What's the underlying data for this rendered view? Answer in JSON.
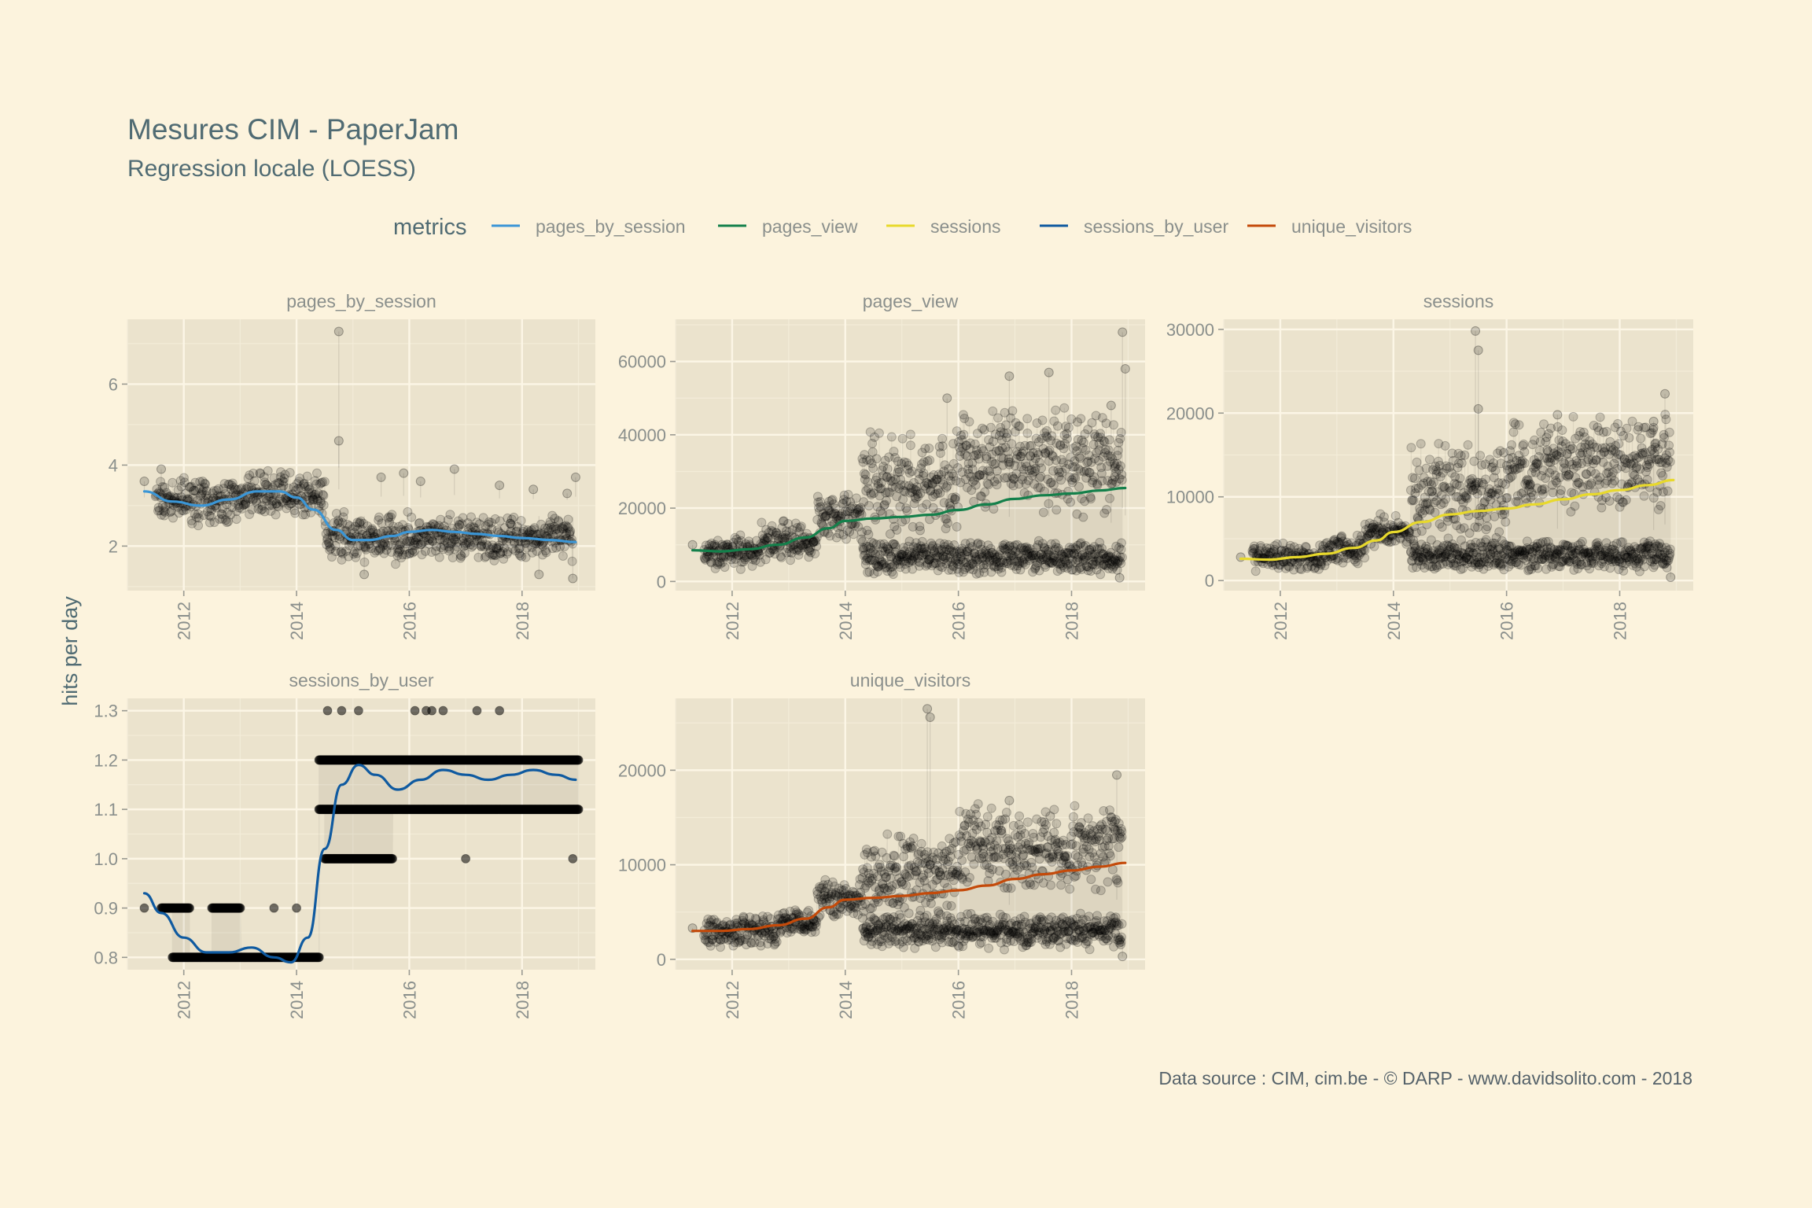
{
  "title": "Mesures CIM - PaperJam",
  "subtitle": "Regression locale (LOESS)",
  "y_axis_label": "hits per day",
  "caption": "Data source : CIM, cim.be - © DARP - www.davidsolito.com - 2018",
  "legend": {
    "title": "metrics",
    "items": [
      {
        "label": "pages_by_session",
        "color": "#3b96d6"
      },
      {
        "label": "pages_view",
        "color": "#14804b"
      },
      {
        "label": "sessions",
        "color": "#e8d92c"
      },
      {
        "label": "sessions_by_user",
        "color": "#0f5aa0"
      },
      {
        "label": "unique_visitors",
        "color": "#c44a0a"
      }
    ]
  },
  "chart_data": [
    {
      "type": "scatter",
      "title": "pages_by_session",
      "color": "#3b96d6",
      "xlim": [
        2011.0,
        2019.3
      ],
      "ylim": [
        0.9,
        7.6
      ],
      "x_ticks": [
        2012,
        2014,
        2016,
        2018
      ],
      "x_tick_labels": [
        "2012",
        "2014",
        "2016",
        "2018"
      ],
      "y_ticks": [
        2,
        4,
        6
      ],
      "y_tick_labels": [
        "2",
        "4",
        "6"
      ],
      "points_note": "daily observations (dense point cloud)",
      "point_bands": [
        {
          "x_start": 2011.5,
          "x_end": 2013.0,
          "y_mid": 3.1,
          "y_spread": 0.6
        },
        {
          "x_start": 2013.0,
          "x_end": 2014.5,
          "y_mid": 3.3,
          "y_spread": 0.6
        },
        {
          "x_start": 2014.5,
          "x_end": 2016.0,
          "y_mid": 2.2,
          "y_spread": 0.7
        },
        {
          "x_start": 2016.0,
          "x_end": 2018.9,
          "y_mid": 2.2,
          "y_spread": 0.6
        }
      ],
      "outliers": [
        {
          "x": 2011.3,
          "y": 3.6
        },
        {
          "x": 2011.6,
          "y": 3.9
        },
        {
          "x": 2014.75,
          "y": 7.3
        },
        {
          "x": 2014.75,
          "y": 4.6
        },
        {
          "x": 2015.5,
          "y": 3.7
        },
        {
          "x": 2015.9,
          "y": 3.8
        },
        {
          "x": 2016.2,
          "y": 3.6
        },
        {
          "x": 2016.8,
          "y": 3.9
        },
        {
          "x": 2017.6,
          "y": 3.5
        },
        {
          "x": 2018.2,
          "y": 3.4
        },
        {
          "x": 2018.8,
          "y": 3.3
        },
        {
          "x": 2018.95,
          "y": 3.7
        },
        {
          "x": 2018.3,
          "y": 1.3
        },
        {
          "x": 2018.9,
          "y": 1.2
        },
        {
          "x": 2015.2,
          "y": 1.3
        }
      ],
      "smooth": {
        "x": [
          2011.3,
          2011.8,
          2012.3,
          2012.8,
          2013.3,
          2013.7,
          2014.0,
          2014.3,
          2014.7,
          2015.0,
          2015.3,
          2015.7,
          2016.0,
          2016.4,
          2016.8,
          2017.2,
          2017.6,
          2018.0,
          2018.5,
          2018.95
        ],
        "y": [
          3.35,
          3.1,
          3.0,
          3.15,
          3.35,
          3.35,
          3.2,
          2.9,
          2.4,
          2.15,
          2.15,
          2.25,
          2.35,
          2.4,
          2.35,
          2.3,
          2.25,
          2.2,
          2.15,
          2.1
        ]
      }
    },
    {
      "type": "scatter",
      "title": "pages_view",
      "color": "#14804b",
      "xlim": [
        2011.0,
        2019.3
      ],
      "ylim": [
        -2500,
        71500
      ],
      "x_ticks": [
        2012,
        2014,
        2016,
        2018
      ],
      "x_tick_labels": [
        "2012",
        "2014",
        "2016",
        "2018"
      ],
      "y_ticks": [
        0,
        20000,
        40000,
        60000
      ],
      "y_tick_labels": [
        "0",
        "20000",
        "40000",
        "60000"
      ],
      "points_note": "daily observations (weekday cluster high, weekend cluster low)",
      "point_bands": [
        {
          "x_start": 2011.5,
          "x_end": 2012.5,
          "y_mid": 8000,
          "y_spread": 5000
        },
        {
          "x_start": 2012.5,
          "x_end": 2013.5,
          "y_mid": 11000,
          "y_spread": 6000
        },
        {
          "x_start": 2013.5,
          "x_end": 2014.3,
          "y_mid": 18000,
          "y_spread": 7000
        },
        {
          "x_start": 2014.3,
          "x_end": 2016.0,
          "y_mid": 26000,
          "y_spread": 16000
        },
        {
          "x_start": 2016.0,
          "x_end": 2018.9,
          "y_mid": 33000,
          "y_spread": 16000
        },
        {
          "x_start": 2014.3,
          "x_end": 2018.9,
          "y_mid": 6500,
          "y_spread": 5000
        }
      ],
      "outliers": [
        {
          "x": 2011.3,
          "y": 10000
        },
        {
          "x": 2015.8,
          "y": 50000
        },
        {
          "x": 2016.9,
          "y": 56000
        },
        {
          "x": 2017.6,
          "y": 57000
        },
        {
          "x": 2018.7,
          "y": 48000
        },
        {
          "x": 2018.9,
          "y": 68000
        },
        {
          "x": 2018.95,
          "y": 58000
        },
        {
          "x": 2018.85,
          "y": 1000
        }
      ],
      "smooth": {
        "x": [
          2011.3,
          2011.8,
          2012.3,
          2012.8,
          2013.3,
          2013.7,
          2014.0,
          2014.5,
          2015.0,
          2015.5,
          2016.0,
          2016.5,
          2017.0,
          2017.5,
          2018.0,
          2018.5,
          2018.95
        ],
        "y": [
          8500,
          8200,
          8800,
          10000,
          12000,
          14500,
          16500,
          17200,
          17600,
          18200,
          19500,
          21000,
          22500,
          23500,
          24000,
          24800,
          25500
        ]
      }
    },
    {
      "type": "scatter",
      "title": "sessions",
      "color": "#e8d92c",
      "xlim": [
        2011.0,
        2019.3
      ],
      "ylim": [
        -1200,
        31200
      ],
      "x_ticks": [
        2012,
        2014,
        2016,
        2018
      ],
      "x_tick_labels": [
        "2012",
        "2014",
        "2016",
        "2018"
      ],
      "y_ticks": [
        0,
        10000,
        20000,
        30000
      ],
      "y_tick_labels": [
        "0",
        "10000",
        "20000",
        "30000"
      ],
      "points_note": "daily observations (weekday cluster high, weekend cluster low)",
      "point_bands": [
        {
          "x_start": 2011.5,
          "x_end": 2012.8,
          "y_mid": 2800,
          "y_spread": 1800
        },
        {
          "x_start": 2012.8,
          "x_end": 2013.5,
          "y_mid": 3800,
          "y_spread": 2000
        },
        {
          "x_start": 2013.5,
          "x_end": 2014.3,
          "y_mid": 5800,
          "y_spread": 2200
        },
        {
          "x_start": 2014.3,
          "x_end": 2016.0,
          "y_mid": 10500,
          "y_spread": 6500
        },
        {
          "x_start": 2016.0,
          "x_end": 2018.9,
          "y_mid": 14000,
          "y_spread": 6500
        },
        {
          "x_start": 2014.3,
          "x_end": 2018.9,
          "y_mid": 3000,
          "y_spread": 2000
        }
      ],
      "outliers": [
        {
          "x": 2011.3,
          "y": 2800
        },
        {
          "x": 2015.45,
          "y": 29800
        },
        {
          "x": 2015.5,
          "y": 27500
        },
        {
          "x": 2015.5,
          "y": 20500
        },
        {
          "x": 2016.9,
          "y": 19800
        },
        {
          "x": 2018.6,
          "y": 19000
        },
        {
          "x": 2018.8,
          "y": 22300
        },
        {
          "x": 2018.9,
          "y": 400
        }
      ],
      "smooth": {
        "x": [
          2011.3,
          2011.8,
          2012.3,
          2012.8,
          2013.3,
          2013.7,
          2014.0,
          2014.5,
          2015.0,
          2015.5,
          2016.0,
          2016.5,
          2017.0,
          2017.5,
          2018.0,
          2018.5,
          2018.95
        ],
        "y": [
          2600,
          2500,
          2800,
          3200,
          3900,
          4800,
          5800,
          7000,
          7900,
          8300,
          8600,
          9100,
          9700,
          10300,
          10800,
          11400,
          12000
        ]
      }
    },
    {
      "type": "scatter",
      "title": "sessions_by_user",
      "color": "#0f5aa0",
      "xlim": [
        2011.0,
        2019.3
      ],
      "ylim": [
        0.775,
        1.325
      ],
      "x_ticks": [
        2012,
        2014,
        2016,
        2018
      ],
      "x_tick_labels": [
        "2012",
        "2014",
        "2016",
        "2018"
      ],
      "y_ticks": [
        0.8,
        0.9,
        1.0,
        1.1,
        1.2,
        1.3
      ],
      "y_tick_labels": [
        "0.8",
        "0.9",
        "1.0",
        "1.1",
        "1.2",
        "1.3"
      ],
      "points_note": "values rounded to one decimal; rows of points at discrete levels",
      "point_rows": [
        {
          "y": 0.9,
          "x_start": 2011.6,
          "x_end": 2012.1
        },
        {
          "y": 0.8,
          "x_start": 2011.8,
          "x_end": 2014.4
        },
        {
          "y": 0.9,
          "x_start": 2012.5,
          "x_end": 2013.0
        },
        {
          "y": 1.2,
          "x_start": 2014.4,
          "x_end": 2019.0
        },
        {
          "y": 1.1,
          "x_start": 2014.4,
          "x_end": 2019.0
        },
        {
          "y": 1.0,
          "x_start": 2014.5,
          "x_end": 2015.7
        }
      ],
      "outliers": [
        {
          "x": 2011.3,
          "y": 0.9
        },
        {
          "x": 2013.6,
          "y": 0.9
        },
        {
          "x": 2014.0,
          "y": 0.9
        },
        {
          "x": 2014.55,
          "y": 1.3
        },
        {
          "x": 2014.8,
          "y": 1.3
        },
        {
          "x": 2015.1,
          "y": 1.3
        },
        {
          "x": 2016.1,
          "y": 1.3
        },
        {
          "x": 2016.3,
          "y": 1.3
        },
        {
          "x": 2016.4,
          "y": 1.3
        },
        {
          "x": 2016.6,
          "y": 1.3
        },
        {
          "x": 2017.2,
          "y": 1.3
        },
        {
          "x": 2017.6,
          "y": 1.3
        },
        {
          "x": 2017.0,
          "y": 1.0
        },
        {
          "x": 2018.9,
          "y": 1.0
        }
      ],
      "smooth": {
        "x": [
          2011.3,
          2011.6,
          2012.0,
          2012.4,
          2012.8,
          2013.2,
          2013.6,
          2013.9,
          2014.2,
          2014.5,
          2014.8,
          2015.1,
          2015.4,
          2015.8,
          2016.2,
          2016.6,
          2017.0,
          2017.4,
          2017.8,
          2018.2,
          2018.6,
          2018.95
        ],
        "y": [
          0.93,
          0.89,
          0.84,
          0.81,
          0.81,
          0.82,
          0.8,
          0.79,
          0.84,
          1.02,
          1.15,
          1.19,
          1.17,
          1.14,
          1.16,
          1.18,
          1.17,
          1.16,
          1.17,
          1.18,
          1.17,
          1.16
        ]
      }
    },
    {
      "type": "scatter",
      "title": "unique_visitors",
      "color": "#c44a0a",
      "xlim": [
        2011.0,
        2019.3
      ],
      "ylim": [
        -1100,
        27600
      ],
      "x_ticks": [
        2012,
        2014,
        2016,
        2018
      ],
      "x_tick_labels": [
        "2012",
        "2014",
        "2016",
        "2018"
      ],
      "y_ticks": [
        0,
        10000,
        20000
      ],
      "y_tick_labels": [
        "0",
        "10000",
        "20000"
      ],
      "points_note": "daily observations (weekday cluster high, weekend cluster low)",
      "point_bands": [
        {
          "x_start": 2011.5,
          "x_end": 2012.8,
          "y_mid": 3000,
          "y_spread": 2000
        },
        {
          "x_start": 2012.8,
          "x_end": 2013.5,
          "y_mid": 4000,
          "y_spread": 2000
        },
        {
          "x_start": 2013.5,
          "x_end": 2014.3,
          "y_mid": 6500,
          "y_spread": 2200
        },
        {
          "x_start": 2014.3,
          "x_end": 2016.0,
          "y_mid": 9000,
          "y_spread": 5000
        },
        {
          "x_start": 2016.0,
          "x_end": 2018.9,
          "y_mid": 12000,
          "y_spread": 5000
        },
        {
          "x_start": 2014.3,
          "x_end": 2018.9,
          "y_mid": 3000,
          "y_spread": 2000
        }
      ],
      "outliers": [
        {
          "x": 2011.3,
          "y": 3300
        },
        {
          "x": 2015.45,
          "y": 26500
        },
        {
          "x": 2015.5,
          "y": 25600
        },
        {
          "x": 2016.9,
          "y": 16800
        },
        {
          "x": 2018.8,
          "y": 19500
        },
        {
          "x": 2018.9,
          "y": 300
        }
      ],
      "smooth": {
        "x": [
          2011.3,
          2011.8,
          2012.3,
          2012.8,
          2013.3,
          2013.7,
          2014.0,
          2014.5,
          2015.0,
          2015.5,
          2016.0,
          2016.5,
          2017.0,
          2017.5,
          2018.0,
          2018.5,
          2018.95
        ],
        "y": [
          3000,
          3000,
          3200,
          3600,
          4300,
          5500,
          6300,
          6500,
          6700,
          7000,
          7300,
          7800,
          8500,
          9000,
          9400,
          9800,
          10200
        ]
      }
    }
  ]
}
